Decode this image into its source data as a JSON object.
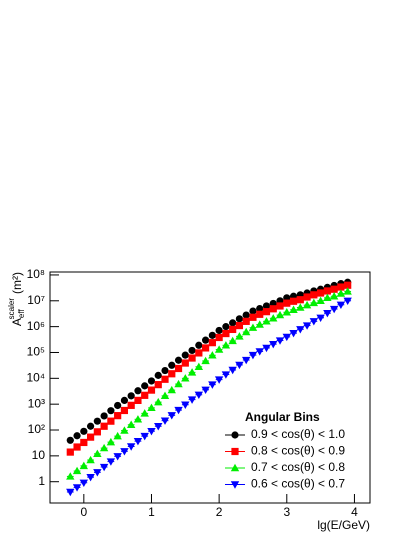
{
  "chart_data": {
    "type": "scatter",
    "x_label": "lg(E/GeV)",
    "y_label": {
      "main": "A",
      "sub": "eff",
      "sup": "scaler",
      "unit": "(m²)"
    },
    "legend_title": "Angular Bins",
    "legend": "lower-right",
    "log_y": true,
    "x": [
      -0.2,
      -0.1,
      0.0,
      0.1,
      0.2,
      0.3,
      0.4,
      0.5,
      0.6,
      0.7,
      0.8,
      0.9,
      1.0,
      1.1,
      1.2,
      1.3,
      1.4,
      1.5,
      1.6,
      1.7,
      1.8,
      1.9,
      2.0,
      2.1,
      2.2,
      2.3,
      2.4,
      2.5,
      2.6,
      2.7,
      2.8,
      2.9,
      3.0,
      3.1,
      3.2,
      3.3,
      3.4,
      3.5,
      3.6,
      3.7,
      3.8,
      3.9
    ],
    "series": [
      {
        "name": "0.9 < cos(θ) < 1.0",
        "color": "#000000",
        "marker": "circle",
        "values": [
          40,
          60,
          89,
          140,
          220,
          350,
          560,
          890,
          1400,
          2100,
          3300,
          5100,
          7900,
          13000,
          20000,
          32000,
          50000,
          79000,
          120000,
          190000,
          300000,
          460000,
          710000,
          1000000,
          1400000,
          2000000,
          2800000,
          4000000,
          5000000,
          6300000,
          7900000,
          10000000,
          13000000,
          15000000,
          17000000,
          20000000,
          24000000,
          28000000,
          33000000,
          39000000,
          46000000,
          52000000
        ]
      },
      {
        "name": "0.8 < cos(θ) < 0.9",
        "color": "#ff0000",
        "marker": "square",
        "values": [
          14,
          22,
          33,
          53,
          85,
          140,
          220,
          360,
          570,
          900,
          1400,
          2200,
          3500,
          5700,
          9200,
          15000,
          24000,
          39000,
          61000,
          96000,
          150000,
          240000,
          380000,
          540000,
          780000,
          1100000,
          1600000,
          2300000,
          3000000,
          3800000,
          4900000,
          6300000,
          8100000,
          9600000,
          11000000,
          14000000,
          17000000,
          20000000,
          24000000,
          28000000,
          34000000,
          40000000
        ]
      },
      {
        "name": "0.7 < cos(θ) < 0.8",
        "color": "#00ee00",
        "marker": "triangle",
        "values": [
          1.6,
          2.6,
          4.1,
          6.9,
          12,
          20,
          34,
          58,
          95,
          160,
          260,
          440,
          720,
          1200,
          2100,
          3500,
          6000,
          10000,
          17000,
          28000,
          47000,
          78000,
          130000,
          190000,
          280000,
          420000,
          620000,
          910000,
          1200000,
          1600000,
          2100000,
          2800000,
          3600000,
          4500000,
          5500000,
          6800000,
          8300000,
          10000000,
          13000000,
          15000000,
          19000000,
          23000000
        ]
      },
      {
        "name": "0.6 < cos(θ) < 0.7",
        "color": "#0000ff",
        "marker": "triangle-down",
        "values": [
          0.4,
          0.6,
          0.91,
          1.5,
          2.3,
          3.7,
          6.0,
          9.6,
          15,
          23,
          37,
          58,
          90,
          140,
          230,
          370,
          590,
          950,
          1500,
          2300,
          3600,
          5700,
          8900,
          14000,
          21000,
          33000,
          51000,
          79000,
          110000,
          150000,
          210000,
          290000,
          400000,
          560000,
          790000,
          1100000,
          1600000,
          2200000,
          3300000,
          4800000,
          7000000,
          10000000
        ]
      }
    ],
    "xlim": [
      -0.5,
      4.23
    ],
    "xticks": [
      0,
      1,
      2,
      3,
      4
    ],
    "ylim": [
      0.15,
      130000000
    ],
    "yticks": [
      1,
      10,
      {
        "value": 100,
        "label": "10²"
      },
      {
        "value": 1000,
        "label": "10³"
      },
      {
        "value": 10000,
        "label": "10⁴"
      },
      {
        "value": 100000,
        "label": "10⁵"
      },
      {
        "value": 1000000,
        "label": "10⁶"
      },
      {
        "value": 10000000,
        "label": "10⁷"
      },
      {
        "value": 100000000,
        "label": "10⁸"
      }
    ]
  }
}
